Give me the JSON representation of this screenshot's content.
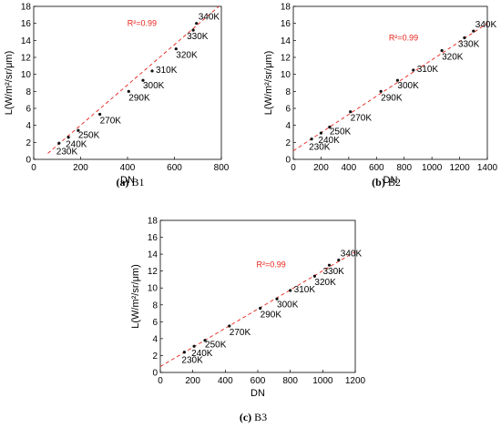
{
  "chart_data": [
    {
      "type": "scatter",
      "caption_letter": "(a)",
      "caption_name": "B1",
      "xlabel": "DN",
      "ylabel": "L(W/m²/sr/μm)",
      "xlim": [
        0,
        800
      ],
      "ylim": [
        0,
        18
      ],
      "xticks": [
        0,
        200,
        400,
        600,
        800
      ],
      "yticks": [
        0,
        2,
        4,
        6,
        8,
        10,
        12,
        14,
        16,
        18
      ],
      "points": [
        {
          "label": "230K",
          "x": 108,
          "y": 1.9
        },
        {
          "label": "240K",
          "x": 148,
          "y": 2.6
        },
        {
          "label": "250K",
          "x": 190,
          "y": 3.4
        },
        {
          "label": "270K",
          "x": 282,
          "y": 5.3
        },
        {
          "label": "290K",
          "x": 405,
          "y": 8.0
        },
        {
          "label": "300K",
          "x": 466,
          "y": 9.3
        },
        {
          "label": "310K",
          "x": 505,
          "y": 10.4
        },
        {
          "label": "320K",
          "x": 607,
          "y": 13.0
        },
        {
          "label": "330K",
          "x": 680,
          "y": 15.2
        },
        {
          "label": "340K",
          "x": 694,
          "y": 16.0
        }
      ],
      "fit": {
        "r2_label": "R²=0.99",
        "x": [
          60,
          790
        ],
        "y": [
          0.7,
          18.0
        ]
      }
    },
    {
      "type": "scatter",
      "caption_letter": "(b)",
      "caption_name": "B2",
      "xlabel": "DN",
      "ylabel": "L(W/m²/sr/μm)",
      "xlim": [
        0,
        1400
      ],
      "ylim": [
        0,
        18
      ],
      "xticks": [
        0,
        200,
        400,
        600,
        800,
        1000,
        1200,
        1400
      ],
      "yticks": [
        0,
        2,
        4,
        6,
        8,
        10,
        12,
        14,
        16,
        18
      ],
      "points": [
        {
          "label": "230K",
          "x": 132,
          "y": 2.4
        },
        {
          "label": "240K",
          "x": 200,
          "y": 3.1
        },
        {
          "label": "250K",
          "x": 262,
          "y": 3.8
        },
        {
          "label": "270K",
          "x": 412,
          "y": 5.6
        },
        {
          "label": "290K",
          "x": 632,
          "y": 8.0
        },
        {
          "label": "300K",
          "x": 752,
          "y": 9.3
        },
        {
          "label": "310K",
          "x": 866,
          "y": 10.5
        },
        {
          "label": "320K",
          "x": 1072,
          "y": 12.8
        },
        {
          "label": "330K",
          "x": 1235,
          "y": 14.3
        },
        {
          "label": "340K",
          "x": 1300,
          "y": 15.1
        }
      ],
      "fit": {
        "r2_label": "R²=0.99",
        "x": [
          0,
          1400
        ],
        "y": [
          1.0,
          16.0
        ]
      }
    },
    {
      "type": "scatter",
      "caption_letter": "(c)",
      "caption_name": "B3",
      "xlabel": "DN",
      "ylabel": "L(W/m²/sr/μm)",
      "xlim": [
        0,
        1200
      ],
      "ylim": [
        0,
        18
      ],
      "xticks": [
        0,
        200,
        400,
        600,
        800,
        1000,
        1200
      ],
      "yticks": [
        0,
        2,
        4,
        6,
        8,
        10,
        12,
        14,
        16,
        18
      ],
      "points": [
        {
          "label": "230K",
          "x": 148,
          "y": 2.4
        },
        {
          "label": "240K",
          "x": 208,
          "y": 3.1
        },
        {
          "label": "250K",
          "x": 275,
          "y": 3.8
        },
        {
          "label": "270K",
          "x": 425,
          "y": 5.5
        },
        {
          "label": "290K",
          "x": 615,
          "y": 7.6
        },
        {
          "label": "300K",
          "x": 718,
          "y": 8.7
        },
        {
          "label": "310K",
          "x": 800,
          "y": 9.7
        },
        {
          "label": "320K",
          "x": 950,
          "y": 11.4
        },
        {
          "label": "330K",
          "x": 1040,
          "y": 12.7
        },
        {
          "label": "340K",
          "x": 1098,
          "y": 13.3
        }
      ],
      "fit": {
        "r2_label": "R²=0.99",
        "x": [
          0,
          1200
        ],
        "y": [
          0.7,
          14.3
        ]
      }
    }
  ]
}
